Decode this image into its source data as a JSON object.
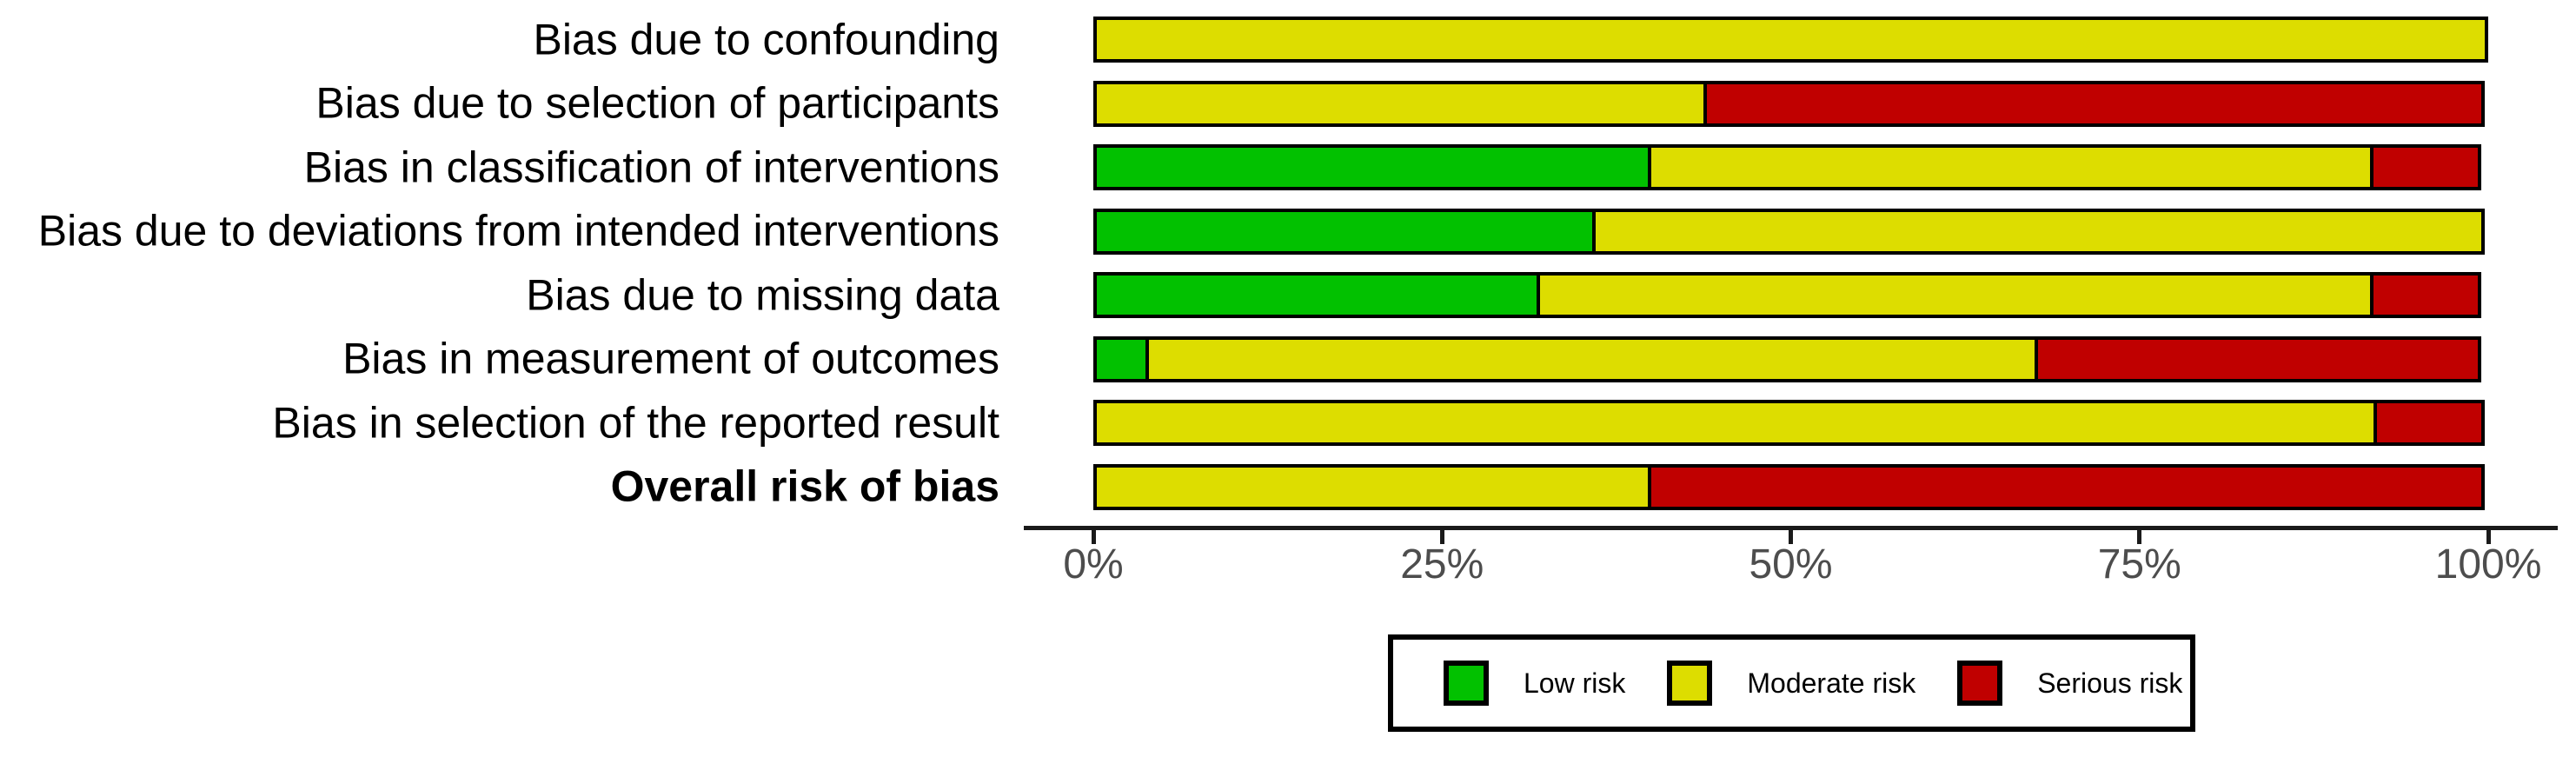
{
  "figure": {
    "background_color": "#ffffff",
    "title": ""
  },
  "chart_data": {
    "type": "bar",
    "variant": "horizontal-stacked-percentage",
    "title": "",
    "xlabel": "",
    "ylabel": "",
    "xlim": [
      0,
      100
    ],
    "grid": false,
    "categories": [
      "Bias due to confounding",
      "Bias due to selection of participants",
      "Bias in classification of interventions",
      "Bias due to deviations from intended interventions",
      "Bias due to missing data",
      "Bias in measurement of outcomes",
      "Bias in selection of the reported result",
      "Overall risk of bias"
    ],
    "bold_category_index": 7,
    "series": [
      {
        "name": "Low risk",
        "color": "#02C100",
        "values": [
          0,
          0,
          40,
          36,
          32,
          4,
          0,
          0
        ]
      },
      {
        "name": "Moderate risk",
        "color": "#DDDD00",
        "values": [
          100,
          44,
          52,
          64,
          60,
          64,
          92,
          40
        ]
      },
      {
        "name": "Serious risk",
        "color": "#C00000",
        "values": [
          0,
          56,
          8,
          0,
          8,
          32,
          8,
          60
        ]
      }
    ],
    "x_ticks": [
      "0%",
      "25%",
      "50%",
      "75%",
      "100%"
    ],
    "legend": {
      "position": "bottom",
      "entries": [
        "Low risk",
        "Moderate risk",
        "Serious risk"
      ]
    }
  },
  "colors": {
    "axis_line": "#1a1a1a",
    "tick_label": "#4d4d4d",
    "category_label": "#000000",
    "segment_border": "#000000",
    "legend_border": "#000000"
  }
}
